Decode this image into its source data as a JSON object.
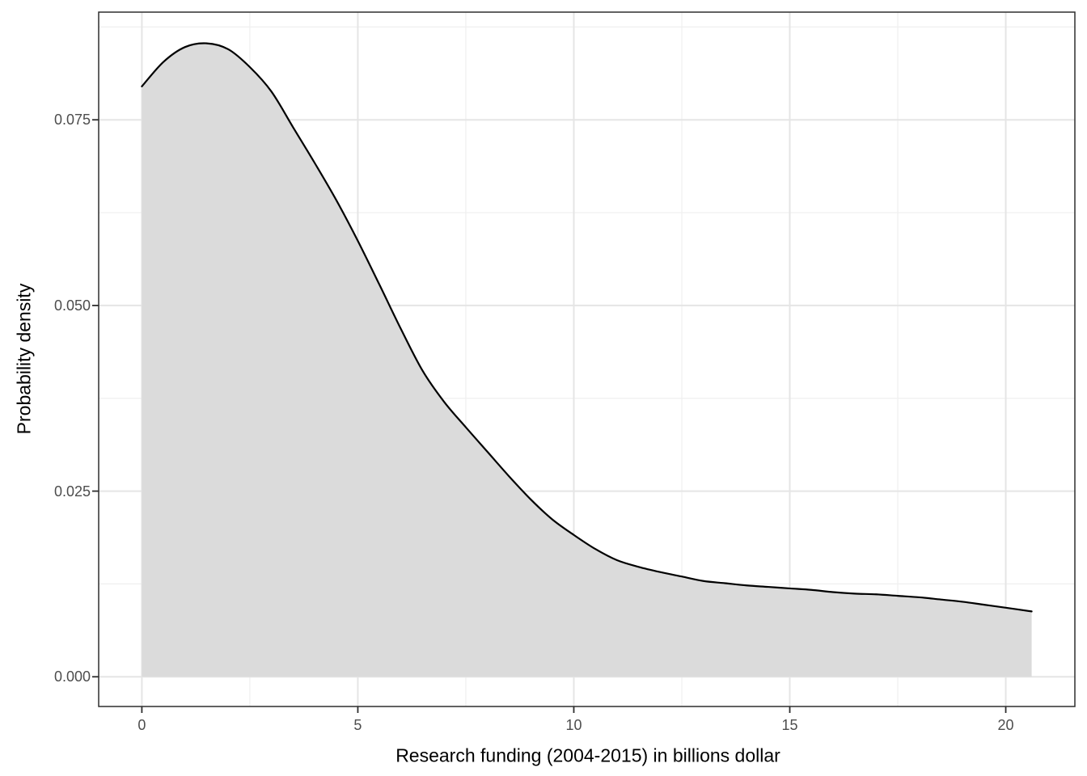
{
  "figure": {
    "background": "#ffffff"
  },
  "chart_data": {
    "type": "area",
    "title": "",
    "xlabel": "Research funding (2004-2015) in billions dollar",
    "ylabel": "Probability density",
    "x_range": [
      -1.0,
      21.6
    ],
    "y_range": [
      -0.004,
      0.0895
    ],
    "x_ticks": [
      {
        "value": 0,
        "label": "0"
      },
      {
        "value": 5,
        "label": "5"
      },
      {
        "value": 10,
        "label": "10"
      },
      {
        "value": 15,
        "label": "15"
      },
      {
        "value": 20,
        "label": "20"
      }
    ],
    "y_ticks": [
      {
        "value": 0.0,
        "label": "0.000"
      },
      {
        "value": 0.025,
        "label": "0.025"
      },
      {
        "value": 0.05,
        "label": "0.050"
      },
      {
        "value": 0.075,
        "label": "0.075"
      }
    ],
    "x_minor": [
      2.5,
      7.5,
      12.5,
      17.5
    ],
    "y_minor": [
      0.0125,
      0.0375,
      0.0625,
      0.0875
    ],
    "grid": true,
    "legend": false,
    "baseline": 0,
    "series": [
      {
        "name": "density",
        "x": [
          0,
          0.5,
          1,
          1.5,
          2,
          2.5,
          3,
          3.5,
          4,
          4.5,
          5,
          5.5,
          6,
          6.5,
          7,
          7.5,
          8,
          8.5,
          9,
          9.5,
          10,
          10.5,
          11,
          11.5,
          12,
          12.5,
          13,
          13.5,
          14,
          14.5,
          15,
          15.5,
          16,
          16.5,
          17,
          17.5,
          18,
          18.5,
          19,
          19.5,
          20,
          20.6
        ],
        "y": [
          0.0795,
          0.0828,
          0.0848,
          0.0853,
          0.0845,
          0.0821,
          0.0788,
          0.074,
          0.0692,
          0.0642,
          0.0587,
          0.0528,
          0.0468,
          0.0412,
          0.037,
          0.0336,
          0.0303,
          0.027,
          0.0239,
          0.0212,
          0.0191,
          0.0172,
          0.0157,
          0.0148,
          0.0141,
          0.0135,
          0.0129,
          0.0126,
          0.0123,
          0.0121,
          0.0119,
          0.0117,
          0.0114,
          0.0112,
          0.0111,
          0.0109,
          0.0107,
          0.0104,
          0.0101,
          0.0097,
          0.0093,
          0.0088
        ]
      }
    ],
    "colors": {
      "fill": "#dbdbdb",
      "line": "#000000",
      "grid_major": "#e5e5e5",
      "grid_minor": "#efefef",
      "panel_border": "#2e2e2e",
      "tick": "#2e2e2e",
      "tick_label": "#4d4d4d",
      "axis_title": "#000000"
    }
  }
}
